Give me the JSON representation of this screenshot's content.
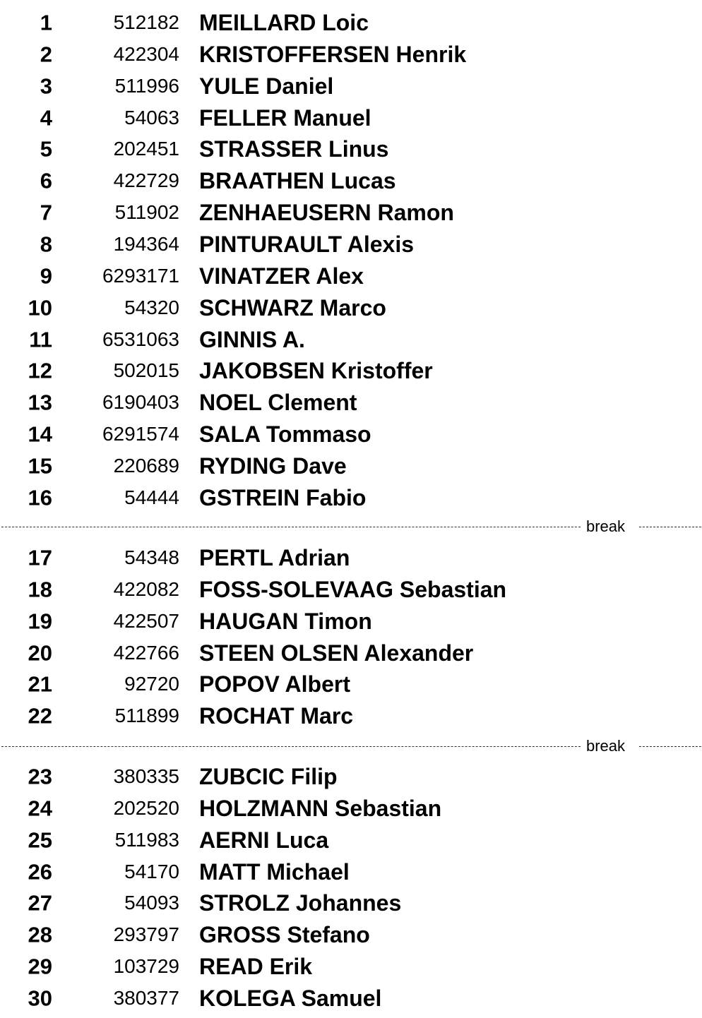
{
  "break_label": "break",
  "groups": [
    [
      {
        "rank": "1",
        "code": "512182",
        "name": "MEILLARD Loic"
      },
      {
        "rank": "2",
        "code": "422304",
        "name": "KRISTOFFERSEN Henrik"
      },
      {
        "rank": "3",
        "code": "511996",
        "name": "YULE Daniel"
      },
      {
        "rank": "4",
        "code": "54063",
        "name": "FELLER Manuel"
      },
      {
        "rank": "5",
        "code": "202451",
        "name": "STRASSER Linus"
      },
      {
        "rank": "6",
        "code": "422729",
        "name": "BRAATHEN Lucas"
      },
      {
        "rank": "7",
        "code": "511902",
        "name": "ZENHAEUSERN Ramon"
      },
      {
        "rank": "8",
        "code": "194364",
        "name": "PINTURAULT Alexis"
      },
      {
        "rank": "9",
        "code": "6293171",
        "name": "VINATZER Alex"
      },
      {
        "rank": "10",
        "code": "54320",
        "name": "SCHWARZ Marco"
      },
      {
        "rank": "11",
        "code": "6531063",
        "name": "GINNIS A."
      },
      {
        "rank": "12",
        "code": "502015",
        "name": "JAKOBSEN Kristoffer"
      },
      {
        "rank": "13",
        "code": "6190403",
        "name": "NOEL Clement"
      },
      {
        "rank": "14",
        "code": "6291574",
        "name": "SALA Tommaso"
      },
      {
        "rank": "15",
        "code": "220689",
        "name": "RYDING Dave"
      },
      {
        "rank": "16",
        "code": "54444",
        "name": "GSTREIN Fabio"
      }
    ],
    [
      {
        "rank": "17",
        "code": "54348",
        "name": "PERTL Adrian"
      },
      {
        "rank": "18",
        "code": "422082",
        "name": "FOSS-SOLEVAAG Sebastian"
      },
      {
        "rank": "19",
        "code": "422507",
        "name": "HAUGAN Timon"
      },
      {
        "rank": "20",
        "code": "422766",
        "name": "STEEN OLSEN Alexander"
      },
      {
        "rank": "21",
        "code": "92720",
        "name": "POPOV Albert"
      },
      {
        "rank": "22",
        "code": "511899",
        "name": "ROCHAT Marc"
      }
    ],
    [
      {
        "rank": "23",
        "code": "380335",
        "name": "ZUBCIC Filip"
      },
      {
        "rank": "24",
        "code": "202520",
        "name": "HOLZMANN Sebastian"
      },
      {
        "rank": "25",
        "code": "511983",
        "name": "AERNI Luca"
      },
      {
        "rank": "26",
        "code": "54170",
        "name": "MATT Michael"
      },
      {
        "rank": "27",
        "code": "54093",
        "name": "STROLZ Johannes"
      },
      {
        "rank": "28",
        "code": "293797",
        "name": "GROSS Stefano"
      },
      {
        "rank": "29",
        "code": "103729",
        "name": "READ Erik"
      },
      {
        "rank": "30",
        "code": "380377",
        "name": "KOLEGA Samuel"
      }
    ]
  ]
}
